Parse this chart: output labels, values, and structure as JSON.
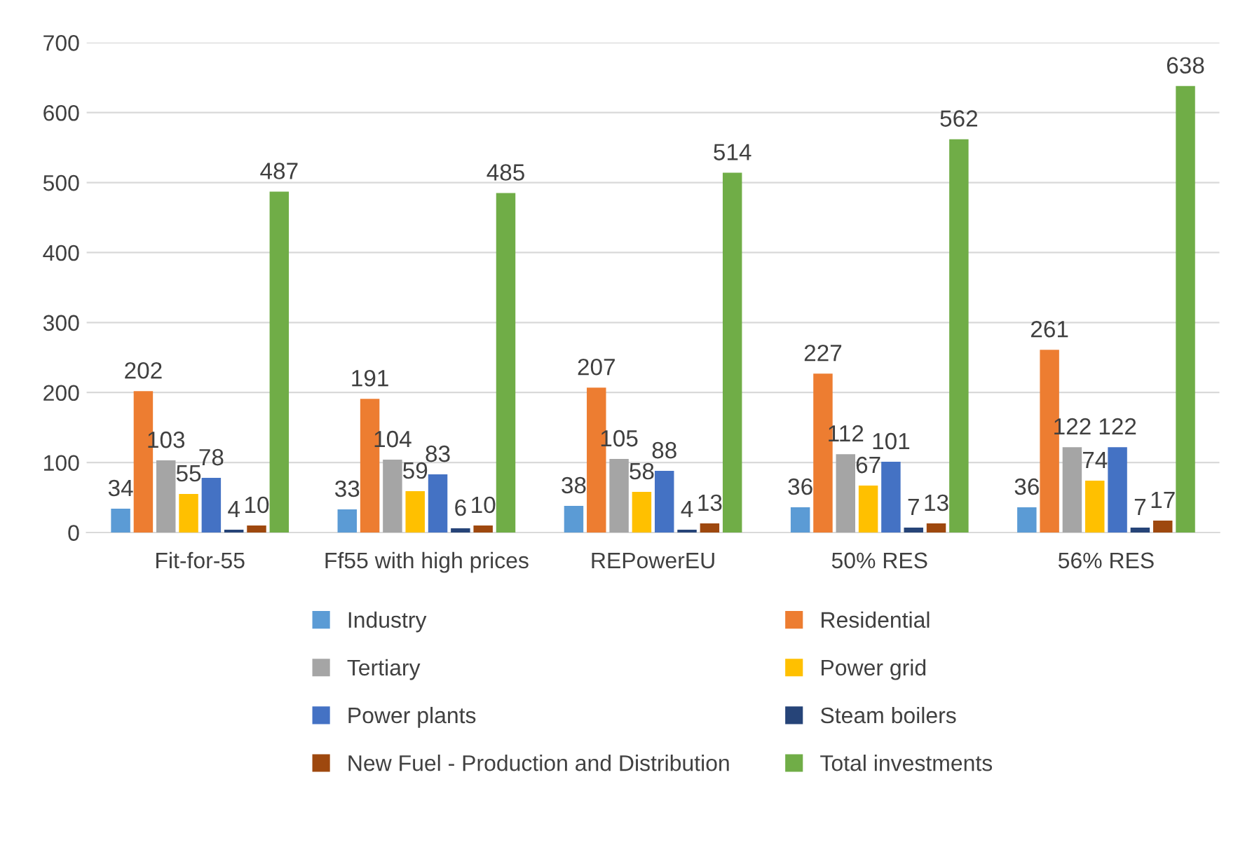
{
  "chart_data": {
    "type": "bar",
    "categories": [
      "Fit-for-55",
      "Ff55 with high prices",
      "REPowerEU",
      "50% RES",
      "56% RES"
    ],
    "series": [
      {
        "name": "Industry",
        "color": "#5b9bd5",
        "values": [
          34,
          33,
          38,
          36,
          36
        ]
      },
      {
        "name": "Residential",
        "color": "#ed7d31",
        "values": [
          202,
          191,
          207,
          227,
          261
        ]
      },
      {
        "name": "Tertiary",
        "color": "#a5a5a5",
        "values": [
          103,
          104,
          105,
          112,
          122
        ]
      },
      {
        "name": "Power grid",
        "color": "#ffc000",
        "values": [
          55,
          59,
          58,
          67,
          74
        ]
      },
      {
        "name": "Power plants",
        "color": "#4472c4",
        "values": [
          78,
          83,
          88,
          101,
          122
        ]
      },
      {
        "name": "Steam boilers",
        "color": "#264478",
        "values": [
          4,
          6,
          4,
          7,
          7
        ]
      },
      {
        "name": "New Fuel - Production and Distribution",
        "color": "#9e480e",
        "values": [
          10,
          10,
          13,
          13,
          17
        ]
      },
      {
        "name": "Total investments",
        "color": "#70ad47",
        "values": [
          487,
          485,
          514,
          562,
          638
        ]
      }
    ],
    "ylim": [
      0,
      700
    ],
    "yticks": [
      0,
      100,
      200,
      300,
      400,
      500,
      600,
      700
    ],
    "grid": "y",
    "legend": "bottom",
    "data_labels": true
  }
}
